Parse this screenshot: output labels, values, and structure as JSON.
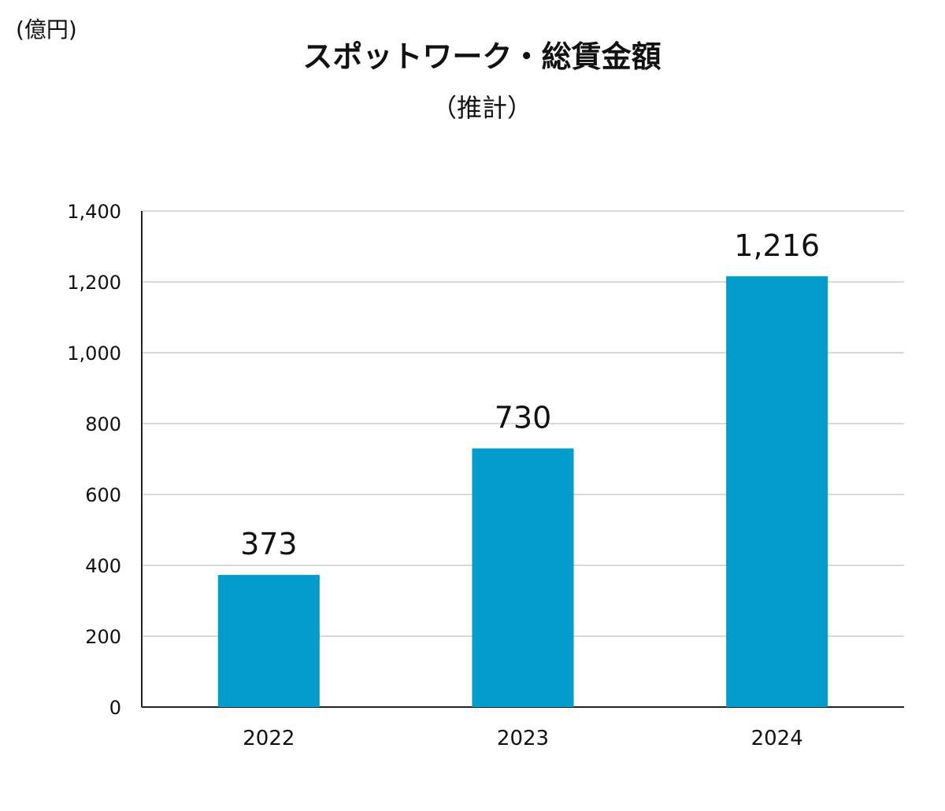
{
  "chart_data": {
    "type": "bar",
    "title": "スポットワーク・総賃金額",
    "subtitle": "（推計）",
    "unit_label": "(億円)",
    "categories": [
      "2022",
      "2023",
      "2024"
    ],
    "values": [
      373,
      730,
      1216
    ],
    "data_labels": [
      "373",
      "730",
      "1,216"
    ],
    "ylim": [
      0,
      1400
    ],
    "yticks": [
      0,
      200,
      400,
      600,
      800,
      1000,
      1200,
      1400
    ],
    "ytick_labels": [
      "0",
      "200",
      "400",
      "600",
      "800",
      "1,000",
      "1,200",
      "1,400"
    ],
    "xlabel": "",
    "ylabel": "",
    "grid": true,
    "legend": "none",
    "colors": {
      "bar": "#049ccb",
      "grid": "#d9d9d9",
      "axis": "#222222",
      "text": "#111111"
    }
  }
}
